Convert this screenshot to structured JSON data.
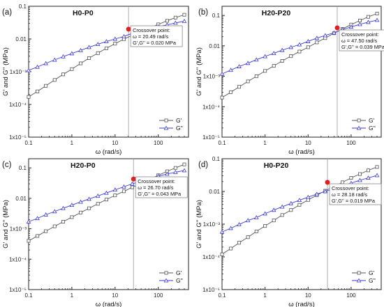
{
  "colors": {
    "gprime": "#555555",
    "gdouble": "#3b3bd8",
    "crossover": "#e02020",
    "frame": "#222222",
    "vline": "#999999"
  },
  "chart_data": [
    {
      "type": "line",
      "panel_tag": "(a)",
      "title": "H0-P0",
      "xlabel": "ω (rad/s)",
      "ylabel": "G' and G'' (MPa)",
      "xscale": "log",
      "yscale": "log",
      "xlim": [
        0.1,
        500
      ],
      "ylim": [
        1e-05,
        0.1
      ],
      "grid": false,
      "legend": "bottom-right",
      "x_ticks": [
        "0.1",
        "1",
        "10",
        "100"
      ],
      "y_ticks": [
        "1x10⁻⁵",
        "1x10⁻⁴",
        "1x10⁻³",
        "0.01",
        "0.1"
      ],
      "series": [
        {
          "name": "G'",
          "marker": "square",
          "x": [
            0.1,
            0.16,
            0.25,
            0.4,
            0.63,
            1,
            1.6,
            2.5,
            4,
            6.3,
            10,
            16,
            25,
            40,
            63,
            100,
            160,
            250,
            400
          ],
          "y": [
            0.00017,
            0.00025,
            0.00037,
            0.00056,
            0.00083,
            0.0012,
            0.0018,
            0.0026,
            0.0037,
            0.0052,
            0.0072,
            0.0099,
            0.013,
            0.017,
            0.022,
            0.028,
            0.036,
            0.045,
            0.055
          ]
        },
        {
          "name": "G''",
          "marker": "triangle",
          "x": [
            0.1,
            0.16,
            0.25,
            0.4,
            0.63,
            1,
            1.6,
            2.5,
            4,
            6.3,
            10,
            16,
            25,
            40,
            63,
            100,
            160,
            250,
            400
          ],
          "y": [
            0.0011,
            0.0014,
            0.0018,
            0.0023,
            0.0029,
            0.0036,
            0.0045,
            0.0056,
            0.0069,
            0.0084,
            0.01,
            0.012,
            0.015,
            0.018,
            0.021,
            0.024,
            0.027,
            0.031,
            0.035
          ]
        }
      ],
      "crossover": {
        "x": 20.49,
        "y": 0.02,
        "label": "Crossover point:",
        "line1": "ω = 20.49 rad/s",
        "line2": "G',G'' = 0.020 MPa"
      }
    },
    {
      "type": "line",
      "panel_tag": "(b)",
      "title": "H20-P20",
      "xlabel": "ω (rad/s)",
      "ylabel": "G' and G'' (MPa)",
      "xscale": "log",
      "yscale": "log",
      "xlim": [
        0.1,
        500
      ],
      "ylim": [
        1e-05,
        0.2
      ],
      "grid": false,
      "legend": "bottom-right",
      "x_ticks": [
        "0.1",
        "1",
        "10",
        "100"
      ],
      "y_ticks": [
        "1x10⁻⁵",
        "1x10⁻⁴",
        "1x10⁻³",
        "0.01",
        "0.1"
      ],
      "series": [
        {
          "name": "G'",
          "marker": "square",
          "x": [
            0.1,
            0.16,
            0.25,
            0.4,
            0.63,
            1,
            1.6,
            2.5,
            4,
            6.3,
            10,
            16,
            25,
            40,
            63,
            100,
            160,
            250,
            400
          ],
          "y": [
            0.0002,
            0.0003,
            0.00045,
            0.00068,
            0.001,
            0.0015,
            0.0022,
            0.0032,
            0.0046,
            0.0065,
            0.009,
            0.013,
            0.018,
            0.026,
            0.036,
            0.05,
            0.068,
            0.09,
            0.115
          ]
        },
        {
          "name": "G''",
          "marker": "triangle",
          "x": [
            0.1,
            0.16,
            0.25,
            0.4,
            0.63,
            1,
            1.6,
            2.5,
            4,
            6.3,
            10,
            16,
            25,
            40,
            63,
            100,
            160,
            250,
            400
          ],
          "y": [
            0.0012,
            0.0016,
            0.0021,
            0.0027,
            0.0035,
            0.0045,
            0.0057,
            0.0072,
            0.009,
            0.011,
            0.014,
            0.018,
            0.022,
            0.027,
            0.034,
            0.042,
            0.051,
            0.06,
            0.07
          ]
        }
      ],
      "crossover": {
        "x": 47.5,
        "y": 0.039,
        "label": "Crossover point:",
        "line1": "ω = 47.50 rad/s",
        "line2": "G',G'' = 0.039 MPa"
      }
    },
    {
      "type": "line",
      "panel_tag": "(c)",
      "title": "H20-P0",
      "xlabel": "ω (rad/s)",
      "ylabel": "G' and G'' (MPa)",
      "xscale": "log",
      "yscale": "log",
      "xlim": [
        0.1,
        500
      ],
      "ylim": [
        1e-05,
        0.2
      ],
      "grid": false,
      "legend": "bottom-right",
      "x_ticks": [
        "0.1",
        "1",
        "10",
        "100"
      ],
      "y_ticks": [
        "1x10⁻⁵",
        "1x10⁻⁴",
        "1x10⁻³",
        "0.01",
        "0.1"
      ],
      "series": [
        {
          "name": "G'",
          "marker": "square",
          "x": [
            0.1,
            0.16,
            0.25,
            0.4,
            0.63,
            1,
            1.6,
            2.5,
            4,
            6.3,
            10,
            16,
            25,
            40,
            63,
            100,
            160,
            250,
            400
          ],
          "y": [
            0.0004,
            0.00058,
            0.00083,
            0.0012,
            0.0017,
            0.0024,
            0.0034,
            0.0047,
            0.0066,
            0.0091,
            0.0125,
            0.017,
            0.023,
            0.031,
            0.042,
            0.057,
            0.077,
            0.1,
            0.13
          ]
        },
        {
          "name": "G''",
          "marker": "triangle",
          "x": [
            0.1,
            0.16,
            0.25,
            0.4,
            0.63,
            1,
            1.6,
            2.5,
            4,
            6.3,
            10,
            16,
            25,
            40,
            63,
            100,
            160,
            250,
            400
          ],
          "y": [
            0.0017,
            0.0022,
            0.0029,
            0.0037,
            0.0047,
            0.006,
            0.0076,
            0.0095,
            0.012,
            0.015,
            0.019,
            0.024,
            0.03,
            0.036,
            0.044,
            0.053,
            0.063,
            0.072,
            0.082
          ]
        }
      ],
      "crossover": {
        "x": 26.7,
        "y": 0.043,
        "label": "Crossover point:",
        "line1": "ω = 26.70 rad/s",
        "line2": "G',G'' = 0.043 MPa"
      }
    },
    {
      "type": "line",
      "panel_tag": "(d)",
      "title": "H0-P20",
      "xlabel": "ω (rad/s)",
      "ylabel": "G' and G'' (MPa)",
      "xscale": "log",
      "yscale": "log",
      "xlim": [
        0.1,
        500
      ],
      "ylim": [
        1e-05,
        0.1
      ],
      "grid": false,
      "legend": "bottom-right",
      "x_ticks": [
        "0.1",
        "1",
        "10",
        "100"
      ],
      "y_ticks": [
        "1x10⁻⁵",
        "1x10⁻⁴",
        "1x10⁻³",
        "0.01",
        "0.1"
      ],
      "series": [
        {
          "name": "G'",
          "marker": "square",
          "x": [
            0.1,
            0.16,
            0.25,
            0.4,
            0.63,
            1,
            1.6,
            2.5,
            4,
            6.3,
            10,
            16,
            25,
            40,
            63,
            100,
            160,
            250,
            400
          ],
          "y": [
            0.00012,
            0.00018,
            0.00027,
            0.0004,
            0.0006,
            0.00088,
            0.0013,
            0.0019,
            0.0027,
            0.0039,
            0.0055,
            0.0077,
            0.0105,
            0.014,
            0.019,
            0.026,
            0.034,
            0.044,
            0.056
          ]
        },
        {
          "name": "G''",
          "marker": "triangle",
          "x": [
            0.1,
            0.16,
            0.25,
            0.4,
            0.63,
            1,
            1.6,
            2.5,
            4,
            6.3,
            10,
            16,
            25,
            40,
            63,
            100,
            160,
            250,
            400
          ],
          "y": [
            0.00058,
            0.00075,
            0.00098,
            0.0013,
            0.0016,
            0.0021,
            0.0027,
            0.0034,
            0.0043,
            0.0054,
            0.0067,
            0.0083,
            0.01,
            0.012,
            0.015,
            0.018,
            0.022,
            0.026,
            0.031
          ]
        }
      ],
      "crossover": {
        "x": 28.18,
        "y": 0.019,
        "label": "Crossover point:",
        "line1": "ω = 28.18 rad/s",
        "line2": "G',G'' = 0.019 MPa"
      }
    }
  ]
}
